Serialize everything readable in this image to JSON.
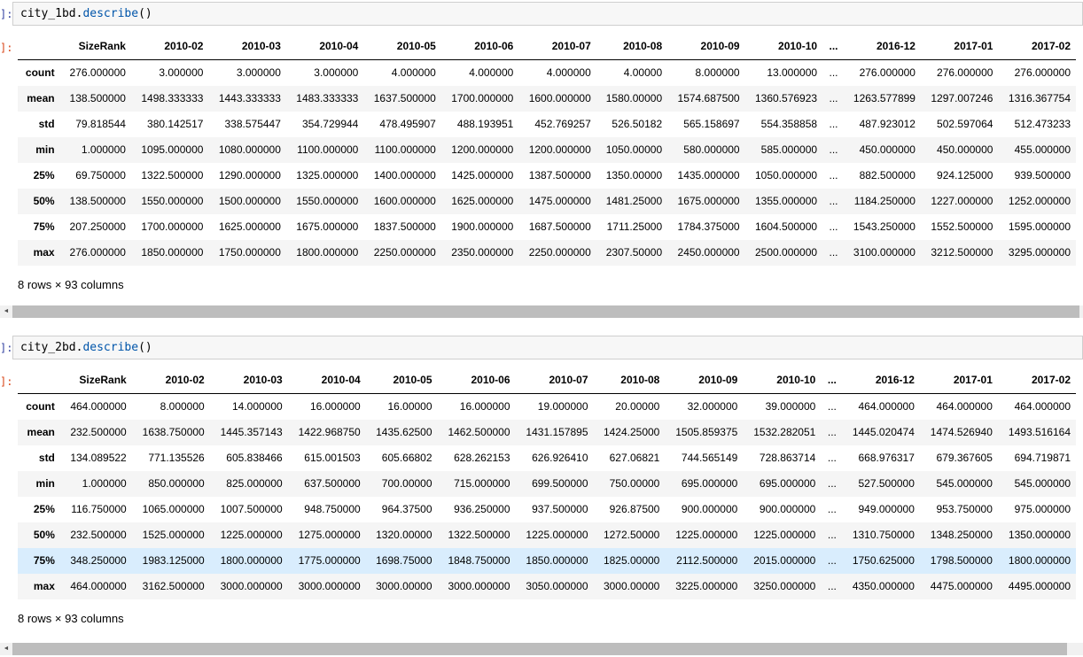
{
  "colors": {
    "code_method_blue": "#0055aa",
    "row_stripe": "#f5f5f5",
    "row_hover": "#d9edfd",
    "input_bg": "#f7f7f7",
    "scrollbar_thumb": "#bdbdbd"
  },
  "scrollbar": {
    "left_arrow_icon": "◄"
  },
  "cells": [
    {
      "input_prompt": "]:",
      "output_prompt": "]:",
      "code": {
        "object": "city_1bd",
        "dot": ".",
        "method": "describe",
        "args": "()"
      },
      "shape_text": "8 rows × 93 columns",
      "table": {
        "columns": [
          "SizeRank",
          "2010-02",
          "2010-03",
          "2010-04",
          "2010-05",
          "2010-06",
          "2010-07",
          "2010-08",
          "2010-09",
          "2010-10",
          "...",
          "2016-12",
          "2017-01",
          "2017-02"
        ],
        "index": [
          "count",
          "mean",
          "std",
          "min",
          "25%",
          "50%",
          "75%",
          "max"
        ],
        "highlight_row": -1,
        "rows": [
          [
            "276.000000",
            "3.000000",
            "3.000000",
            "3.000000",
            "4.000000",
            "4.000000",
            "4.000000",
            "4.00000",
            "8.000000",
            "13.000000",
            "...",
            "276.000000",
            "276.000000",
            "276.000000"
          ],
          [
            "138.500000",
            "1498.333333",
            "1443.333333",
            "1483.333333",
            "1637.500000",
            "1700.000000",
            "1600.000000",
            "1580.00000",
            "1574.687500",
            "1360.576923",
            "...",
            "1263.577899",
            "1297.007246",
            "1316.367754"
          ],
          [
            "79.818544",
            "380.142517",
            "338.575447",
            "354.729944",
            "478.495907",
            "488.193951",
            "452.769257",
            "526.50182",
            "565.158697",
            "554.358858",
            "...",
            "487.923012",
            "502.597064",
            "512.473233"
          ],
          [
            "1.000000",
            "1095.000000",
            "1080.000000",
            "1100.000000",
            "1100.000000",
            "1200.000000",
            "1200.000000",
            "1050.00000",
            "580.000000",
            "585.000000",
            "...",
            "450.000000",
            "450.000000",
            "455.000000"
          ],
          [
            "69.750000",
            "1322.500000",
            "1290.000000",
            "1325.000000",
            "1400.000000",
            "1425.000000",
            "1387.500000",
            "1350.00000",
            "1435.000000",
            "1050.000000",
            "...",
            "882.500000",
            "924.125000",
            "939.500000"
          ],
          [
            "138.500000",
            "1550.000000",
            "1500.000000",
            "1550.000000",
            "1600.000000",
            "1625.000000",
            "1475.000000",
            "1481.25000",
            "1675.000000",
            "1355.000000",
            "...",
            "1184.250000",
            "1227.000000",
            "1252.000000"
          ],
          [
            "207.250000",
            "1700.000000",
            "1625.000000",
            "1675.000000",
            "1837.500000",
            "1900.000000",
            "1687.500000",
            "1711.25000",
            "1784.375000",
            "1604.500000",
            "...",
            "1543.250000",
            "1552.500000",
            "1595.000000"
          ],
          [
            "276.000000",
            "1850.000000",
            "1750.000000",
            "1800.000000",
            "2250.000000",
            "2350.000000",
            "2250.000000",
            "2307.50000",
            "2450.000000",
            "2500.000000",
            "...",
            "3100.000000",
            "3212.500000",
            "3295.000000"
          ]
        ]
      }
    },
    {
      "input_prompt": "]:",
      "output_prompt": "]:",
      "code": {
        "object": "city_2bd",
        "dot": ".",
        "method": "describe",
        "args": "()"
      },
      "shape_text": "8 rows × 93 columns",
      "table": {
        "columns": [
          "SizeRank",
          "2010-02",
          "2010-03",
          "2010-04",
          "2010-05",
          "2010-06",
          "2010-07",
          "2010-08",
          "2010-09",
          "2010-10",
          "...",
          "2016-12",
          "2017-01",
          "2017-02"
        ],
        "index": [
          "count",
          "mean",
          "std",
          "min",
          "25%",
          "50%",
          "75%",
          "max"
        ],
        "highlight_row": 6,
        "rows": [
          [
            "464.000000",
            "8.000000",
            "14.000000",
            "16.000000",
            "16.00000",
            "16.000000",
            "19.000000",
            "20.00000",
            "32.000000",
            "39.000000",
            "...",
            "464.000000",
            "464.000000",
            "464.000000"
          ],
          [
            "232.500000",
            "1638.750000",
            "1445.357143",
            "1422.968750",
            "1435.62500",
            "1462.500000",
            "1431.157895",
            "1424.25000",
            "1505.859375",
            "1532.282051",
            "...",
            "1445.020474",
            "1474.526940",
            "1493.516164"
          ],
          [
            "134.089522",
            "771.135526",
            "605.838466",
            "615.001503",
            "605.66802",
            "628.262153",
            "626.926410",
            "627.06821",
            "744.565149",
            "728.863714",
            "...",
            "668.976317",
            "679.367605",
            "694.719871"
          ],
          [
            "1.000000",
            "850.000000",
            "825.000000",
            "637.500000",
            "700.00000",
            "715.000000",
            "699.500000",
            "750.00000",
            "695.000000",
            "695.000000",
            "...",
            "527.500000",
            "545.000000",
            "545.000000"
          ],
          [
            "116.750000",
            "1065.000000",
            "1007.500000",
            "948.750000",
            "964.37500",
            "936.250000",
            "937.500000",
            "926.87500",
            "900.000000",
            "900.000000",
            "...",
            "949.000000",
            "953.750000",
            "975.000000"
          ],
          [
            "232.500000",
            "1525.000000",
            "1225.000000",
            "1275.000000",
            "1320.00000",
            "1322.500000",
            "1225.000000",
            "1272.50000",
            "1225.000000",
            "1225.000000",
            "...",
            "1310.750000",
            "1348.250000",
            "1350.000000"
          ],
          [
            "348.250000",
            "1983.125000",
            "1800.000000",
            "1775.000000",
            "1698.75000",
            "1848.750000",
            "1850.000000",
            "1825.00000",
            "2112.500000",
            "2015.000000",
            "...",
            "1750.625000",
            "1798.500000",
            "1800.000000"
          ],
          [
            "464.000000",
            "3162.500000",
            "3000.000000",
            "3000.000000",
            "3000.00000",
            "3000.000000",
            "3050.000000",
            "3000.00000",
            "3225.000000",
            "3250.000000",
            "...",
            "4350.000000",
            "4475.000000",
            "4495.000000"
          ]
        ]
      }
    }
  ]
}
